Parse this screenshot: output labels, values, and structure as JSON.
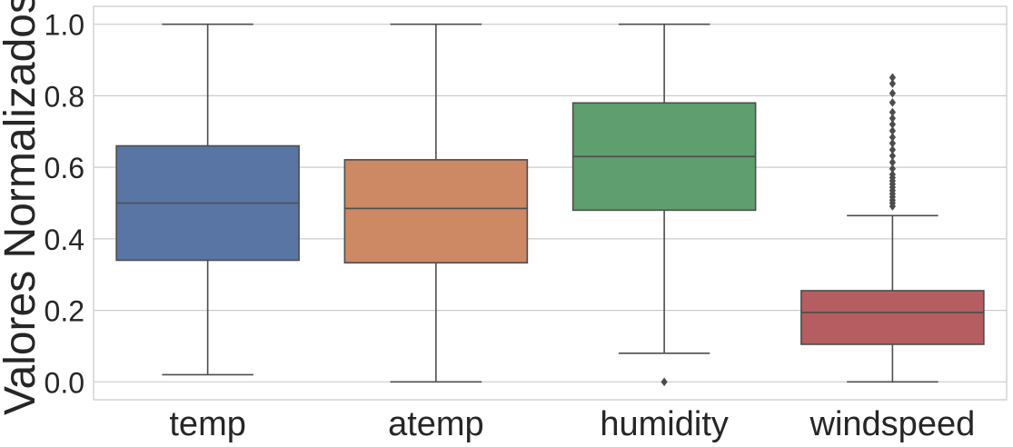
{
  "chart_data": {
    "type": "boxplot",
    "title": "",
    "xlabel": "",
    "ylabel": "Valores Normalizados",
    "ylim": [
      -0.05,
      1.05
    ],
    "yticks": [
      0.0,
      0.2,
      0.4,
      0.6,
      0.8,
      1.0
    ],
    "ytick_labels": [
      "0.0",
      "0.2",
      "0.4",
      "0.6",
      "0.8",
      "1.0"
    ],
    "grid": "horizontal",
    "categories": [
      "temp",
      "atemp",
      "humidity",
      "windspeed"
    ],
    "series": [
      {
        "category": "temp",
        "color": "#5975a4",
        "whisker_low": 0.02,
        "q1": 0.34,
        "median": 0.5,
        "q3": 0.66,
        "whisker_high": 1.0,
        "outliers": []
      },
      {
        "category": "atemp",
        "color": "#cc8963",
        "whisker_low": 0.0,
        "q1": 0.333,
        "median": 0.485,
        "q3": 0.621,
        "whisker_high": 1.0,
        "outliers": []
      },
      {
        "category": "humidity",
        "color": "#5f9e6e",
        "whisker_low": 0.08,
        "q1": 0.48,
        "median": 0.63,
        "q3": 0.78,
        "whisker_high": 1.0,
        "outliers": [
          0.0
        ]
      },
      {
        "category": "windspeed",
        "color": "#b55d60",
        "whisker_low": 0.0,
        "q1": 0.105,
        "median": 0.194,
        "q3": 0.255,
        "whisker_high": 0.465,
        "outliers": [
          0.491,
          0.5,
          0.508,
          0.517,
          0.526,
          0.535,
          0.544,
          0.553,
          0.562,
          0.571,
          0.58,
          0.596,
          0.614,
          0.632,
          0.649,
          0.667,
          0.684,
          0.702,
          0.72,
          0.737,
          0.754,
          0.781,
          0.807,
          0.834,
          0.851
        ]
      }
    ]
  }
}
